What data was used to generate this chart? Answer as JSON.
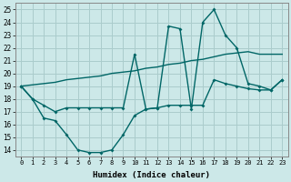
{
  "xlabel": "Humidex (Indice chaleur)",
  "background_color": "#cce8e8",
  "grid_color": "#aacccc",
  "line_color": "#006666",
  "xlim": [
    -0.5,
    23.5
  ],
  "ylim": [
    13.5,
    25.5
  ],
  "xticks": [
    0,
    1,
    2,
    3,
    4,
    5,
    6,
    7,
    8,
    9,
    10,
    11,
    12,
    13,
    14,
    15,
    16,
    17,
    18,
    19,
    20,
    21,
    22,
    23
  ],
  "yticks": [
    14,
    15,
    16,
    17,
    18,
    19,
    20,
    21,
    22,
    23,
    24,
    25
  ],
  "line1_x": [
    0,
    1,
    2,
    3,
    4,
    5,
    6,
    7,
    8,
    9,
    10,
    11,
    12,
    13,
    14,
    15,
    16,
    17,
    18,
    19,
    20,
    21,
    22,
    23
  ],
  "line1_y": [
    19.0,
    18.0,
    17.5,
    17.0,
    17.3,
    17.3,
    17.3,
    17.3,
    17.3,
    17.3,
    21.5,
    17.2,
    17.3,
    23.7,
    23.5,
    17.2,
    24.0,
    25.0,
    23.0,
    22.0,
    19.2,
    19.0,
    18.7,
    19.5
  ],
  "line2_x": [
    0,
    1,
    2,
    3,
    4,
    5,
    6,
    7,
    8,
    9,
    10,
    11,
    12,
    13,
    14,
    15,
    16,
    17,
    18,
    19,
    20,
    21,
    22,
    23
  ],
  "line2_y": [
    19.0,
    19.1,
    19.2,
    19.3,
    19.5,
    19.6,
    19.7,
    19.8,
    20.0,
    20.1,
    20.2,
    20.4,
    20.5,
    20.7,
    20.8,
    21.0,
    21.1,
    21.3,
    21.5,
    21.6,
    21.7,
    21.5,
    21.5,
    21.5
  ],
  "line3_x": [
    0,
    1,
    2,
    3,
    4,
    5,
    6,
    7,
    8,
    9,
    10,
    11,
    12,
    13,
    14,
    15,
    16,
    17,
    18,
    19,
    20,
    21,
    22,
    23
  ],
  "line3_y": [
    19.0,
    18.0,
    16.5,
    16.3,
    15.2,
    14.0,
    13.8,
    13.8,
    14.0,
    15.2,
    16.7,
    17.2,
    17.3,
    17.5,
    17.5,
    17.5,
    17.5,
    19.5,
    19.2,
    19.0,
    18.8,
    18.7,
    18.7,
    19.5
  ]
}
